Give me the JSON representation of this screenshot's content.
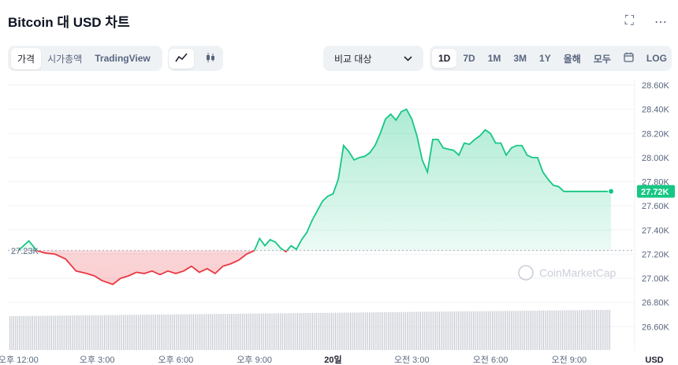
{
  "title": "Bitcoin 대 USD 차트",
  "icons": {
    "expand": "expand-icon",
    "more": "more-dots-icon",
    "line": "line-chart-icon",
    "candle": "candlestick-icon",
    "calendar": "calendar-icon",
    "chevron": "chevron-down-icon"
  },
  "view_tabs": [
    "가격",
    "시가총액",
    "TradingView"
  ],
  "compare_label": "비교 대상",
  "range_tabs": [
    "1D",
    "7D",
    "1M",
    "3M",
    "1Y",
    "올해",
    "모두"
  ],
  "log_label": "LOG",
  "watermark": "CoinMarketCap",
  "colors": {
    "up": "#16c784",
    "down": "#ea3943",
    "accent": "#16c784"
  },
  "chart_data": {
    "type": "line",
    "title": "Bitcoin 대 USD 차트",
    "ylim": [
      26500,
      28650
    ],
    "yticks": [
      "28.60K",
      "28.40K",
      "28.20K",
      "28.00K",
      "27.80K",
      "27.60K",
      "27.40K",
      "27.20K",
      "27.00K",
      "26.80K",
      "26.60K"
    ],
    "ytick_values": [
      28600,
      28400,
      28200,
      28000,
      27800,
      27600,
      27400,
      27200,
      27000,
      26800,
      26600
    ],
    "xticks": [
      "오후 12:00",
      "오후 3:00",
      "오후 6:00",
      "오후 9:00",
      "20일",
      "오전 3:00",
      "오전 6:00",
      "오전 9:00"
    ],
    "xtick_hours": [
      0,
      3,
      6,
      9,
      12,
      15,
      18,
      21
    ],
    "x_unit_label": "USD",
    "baseline": 27230,
    "baseline_label": "27.23K",
    "current_value": 27720,
    "current_label": "27.72K",
    "grid": true,
    "price_series_hours": [
      0,
      0.4,
      0.7,
      1.0,
      1.4,
      1.8,
      2.2,
      2.6,
      2.9,
      3.2,
      3.6,
      3.9,
      4.2,
      4.5,
      4.8,
      5.1,
      5.4,
      5.7,
      6.0,
      6.3,
      6.6,
      6.9,
      7.2,
      7.5,
      7.8,
      8.1,
      8.4,
      8.7,
      9.0,
      9.2,
      9.4,
      9.6,
      9.8,
      10.0,
      10.2,
      10.4,
      10.6,
      10.8,
      11.0,
      11.2,
      11.4,
      11.6,
      11.8,
      12.0,
      12.2,
      12.4,
      12.6,
      12.8,
      13.0,
      13.2,
      13.4,
      13.6,
      13.8,
      14.0,
      14.2,
      14.4,
      14.6,
      14.8,
      15.0,
      15.2,
      15.4,
      15.6,
      15.8,
      16.0,
      16.2,
      16.4,
      16.6,
      16.8,
      17.0,
      17.2,
      17.4,
      17.6,
      17.8,
      18.0,
      18.2,
      18.4,
      18.6,
      18.8,
      19.0,
      19.2,
      19.4,
      19.6,
      19.8,
      20.0,
      20.2,
      20.4,
      20.6,
      20.8,
      21.0,
      21.2,
      21.4,
      21.6,
      21.8,
      22.0,
      22.2,
      22.4,
      22.6
    ],
    "price_series": [
      27230,
      27310,
      27230,
      27210,
      27200,
      27160,
      27060,
      27040,
      27020,
      26980,
      26950,
      27000,
      27020,
      27050,
      27040,
      27060,
      27030,
      27060,
      27040,
      27060,
      27100,
      27050,
      27080,
      27040,
      27100,
      27120,
      27150,
      27200,
      27230,
      27330,
      27270,
      27320,
      27300,
      27250,
      27220,
      27270,
      27240,
      27320,
      27380,
      27480,
      27560,
      27640,
      27680,
      27700,
      27820,
      28100,
      28050,
      27980,
      28000,
      28010,
      28040,
      28100,
      28200,
      28320,
      28360,
      28310,
      28380,
      28400,
      28320,
      28180,
      27980,
      27880,
      28150,
      28150,
      28080,
      28070,
      28060,
      28020,
      28120,
      28110,
      28150,
      28180,
      28230,
      28200,
      28120,
      28120,
      28020,
      28080,
      28100,
      28100,
      28020,
      28000,
      28000,
      27880,
      27820,
      27770,
      27760,
      27720,
      27720,
      27720,
      27720,
      27720,
      27720,
      27720,
      27720,
      27720,
      27720
    ],
    "volume_level": "uniform"
  }
}
